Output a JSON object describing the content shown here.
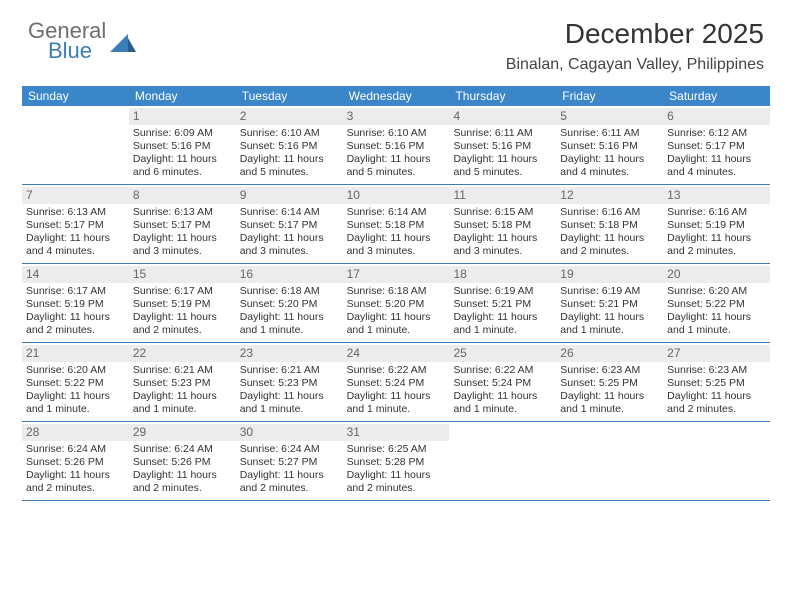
{
  "brand": {
    "general": "General",
    "blue": "Blue"
  },
  "title": "December 2025",
  "location": "Binalan, Cagayan Valley, Philippines",
  "colors": {
    "header_bg": "#3a86c8",
    "border": "#3a7db8",
    "daynum_bg": "#ececec",
    "text": "#333333",
    "muted": "#6e6e6e",
    "brand_blue": "#3a7db8"
  },
  "weekdays": [
    "Sunday",
    "Monday",
    "Tuesday",
    "Wednesday",
    "Thursday",
    "Friday",
    "Saturday"
  ],
  "first_weekday_index": 1,
  "days": [
    {
      "n": 1,
      "sunrise": "6:09 AM",
      "sunset": "5:16 PM",
      "daylight": "11 hours and 6 minutes."
    },
    {
      "n": 2,
      "sunrise": "6:10 AM",
      "sunset": "5:16 PM",
      "daylight": "11 hours and 5 minutes."
    },
    {
      "n": 3,
      "sunrise": "6:10 AM",
      "sunset": "5:16 PM",
      "daylight": "11 hours and 5 minutes."
    },
    {
      "n": 4,
      "sunrise": "6:11 AM",
      "sunset": "5:16 PM",
      "daylight": "11 hours and 5 minutes."
    },
    {
      "n": 5,
      "sunrise": "6:11 AM",
      "sunset": "5:16 PM",
      "daylight": "11 hours and 4 minutes."
    },
    {
      "n": 6,
      "sunrise": "6:12 AM",
      "sunset": "5:17 PM",
      "daylight": "11 hours and 4 minutes."
    },
    {
      "n": 7,
      "sunrise": "6:13 AM",
      "sunset": "5:17 PM",
      "daylight": "11 hours and 4 minutes."
    },
    {
      "n": 8,
      "sunrise": "6:13 AM",
      "sunset": "5:17 PM",
      "daylight": "11 hours and 3 minutes."
    },
    {
      "n": 9,
      "sunrise": "6:14 AM",
      "sunset": "5:17 PM",
      "daylight": "11 hours and 3 minutes."
    },
    {
      "n": 10,
      "sunrise": "6:14 AM",
      "sunset": "5:18 PM",
      "daylight": "11 hours and 3 minutes."
    },
    {
      "n": 11,
      "sunrise": "6:15 AM",
      "sunset": "5:18 PM",
      "daylight": "11 hours and 3 minutes."
    },
    {
      "n": 12,
      "sunrise": "6:16 AM",
      "sunset": "5:18 PM",
      "daylight": "11 hours and 2 minutes."
    },
    {
      "n": 13,
      "sunrise": "6:16 AM",
      "sunset": "5:19 PM",
      "daylight": "11 hours and 2 minutes."
    },
    {
      "n": 14,
      "sunrise": "6:17 AM",
      "sunset": "5:19 PM",
      "daylight": "11 hours and 2 minutes."
    },
    {
      "n": 15,
      "sunrise": "6:17 AM",
      "sunset": "5:19 PM",
      "daylight": "11 hours and 2 minutes."
    },
    {
      "n": 16,
      "sunrise": "6:18 AM",
      "sunset": "5:20 PM",
      "daylight": "11 hours and 1 minute."
    },
    {
      "n": 17,
      "sunrise": "6:18 AM",
      "sunset": "5:20 PM",
      "daylight": "11 hours and 1 minute."
    },
    {
      "n": 18,
      "sunrise": "6:19 AM",
      "sunset": "5:21 PM",
      "daylight": "11 hours and 1 minute."
    },
    {
      "n": 19,
      "sunrise": "6:19 AM",
      "sunset": "5:21 PM",
      "daylight": "11 hours and 1 minute."
    },
    {
      "n": 20,
      "sunrise": "6:20 AM",
      "sunset": "5:22 PM",
      "daylight": "11 hours and 1 minute."
    },
    {
      "n": 21,
      "sunrise": "6:20 AM",
      "sunset": "5:22 PM",
      "daylight": "11 hours and 1 minute."
    },
    {
      "n": 22,
      "sunrise": "6:21 AM",
      "sunset": "5:23 PM",
      "daylight": "11 hours and 1 minute."
    },
    {
      "n": 23,
      "sunrise": "6:21 AM",
      "sunset": "5:23 PM",
      "daylight": "11 hours and 1 minute."
    },
    {
      "n": 24,
      "sunrise": "6:22 AM",
      "sunset": "5:24 PM",
      "daylight": "11 hours and 1 minute."
    },
    {
      "n": 25,
      "sunrise": "6:22 AM",
      "sunset": "5:24 PM",
      "daylight": "11 hours and 1 minute."
    },
    {
      "n": 26,
      "sunrise": "6:23 AM",
      "sunset": "5:25 PM",
      "daylight": "11 hours and 1 minute."
    },
    {
      "n": 27,
      "sunrise": "6:23 AM",
      "sunset": "5:25 PM",
      "daylight": "11 hours and 2 minutes."
    },
    {
      "n": 28,
      "sunrise": "6:24 AM",
      "sunset": "5:26 PM",
      "daylight": "11 hours and 2 minutes."
    },
    {
      "n": 29,
      "sunrise": "6:24 AM",
      "sunset": "5:26 PM",
      "daylight": "11 hours and 2 minutes."
    },
    {
      "n": 30,
      "sunrise": "6:24 AM",
      "sunset": "5:27 PM",
      "daylight": "11 hours and 2 minutes."
    },
    {
      "n": 31,
      "sunrise": "6:25 AM",
      "sunset": "5:28 PM",
      "daylight": "11 hours and 2 minutes."
    }
  ],
  "labels": {
    "sunrise": "Sunrise:",
    "sunset": "Sunset:",
    "daylight": "Daylight:"
  }
}
